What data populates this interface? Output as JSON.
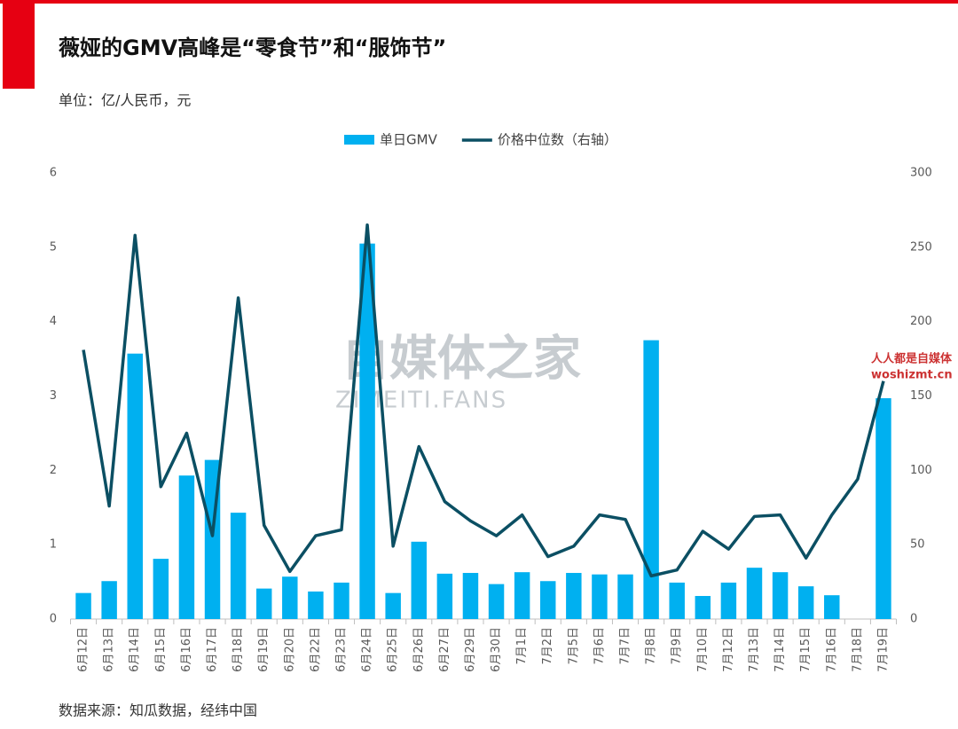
{
  "chart_data": {
    "type": "bar-line",
    "title": "薇娅的GMV高峰是“零食节”和“服饰节”",
    "subtitle": "单位：亿/人民币，元",
    "source": "数据来源：知瓜数据，经纬中国",
    "watermarks": [
      "自媒体之家",
      "ZIMEITI.FANS",
      "人人都是自媒体",
      "woshizmt.cn"
    ],
    "categories": [
      "6月12日",
      "6月13日",
      "6月14日",
      "6月15日",
      "6月16日",
      "6月17日",
      "6月18日",
      "6月19日",
      "6月20日",
      "6月22日",
      "6月23日",
      "6月24日",
      "6月25日",
      "6月26日",
      "6月27日",
      "6月29日",
      "6月30日",
      "7月1日",
      "7月2日",
      "7月5日",
      "7月6日",
      "7月7日",
      "7月8日",
      "7月9日",
      "7月10日",
      "7月12日",
      "7月13日",
      "7月14日",
      "7月15日",
      "7月16日",
      "7月18日",
      "7月19日"
    ],
    "series": [
      {
        "name": "单日GMV",
        "type": "bar",
        "color": "#00b0f0",
        "values": [
          0.35,
          0.51,
          3.57,
          0.81,
          1.93,
          2.14,
          1.43,
          0.41,
          0.57,
          0.37,
          0.49,
          5.05,
          0.35,
          1.04,
          0.61,
          0.62,
          0.47,
          0.63,
          0.51,
          0.62,
          0.6,
          0.6,
          3.75,
          0.49,
          0.31,
          0.49,
          0.69,
          0.63,
          0.44,
          0.32,
          null,
          2.97
        ]
      },
      {
        "name": "价格中位数（右轴）",
        "type": "line",
        "axis": "y2",
        "color": "#0b4f63",
        "values": [
          181,
          76,
          258,
          89,
          125,
          56,
          216,
          63,
          32,
          56,
          60,
          265,
          49,
          116,
          79,
          66,
          56,
          70,
          42,
          49,
          70,
          67,
          29,
          33,
          59,
          47,
          69,
          70,
          41,
          70,
          94,
          160
        ]
      }
    ],
    "ylim": [
      0,
      6
    ],
    "yticks": [
      0,
      1,
      2,
      3,
      4,
      5,
      6
    ],
    "y2lim": [
      0,
      300
    ],
    "y2ticks": [
      0,
      50,
      100,
      150,
      200,
      250,
      300
    ],
    "legend": "top"
  }
}
